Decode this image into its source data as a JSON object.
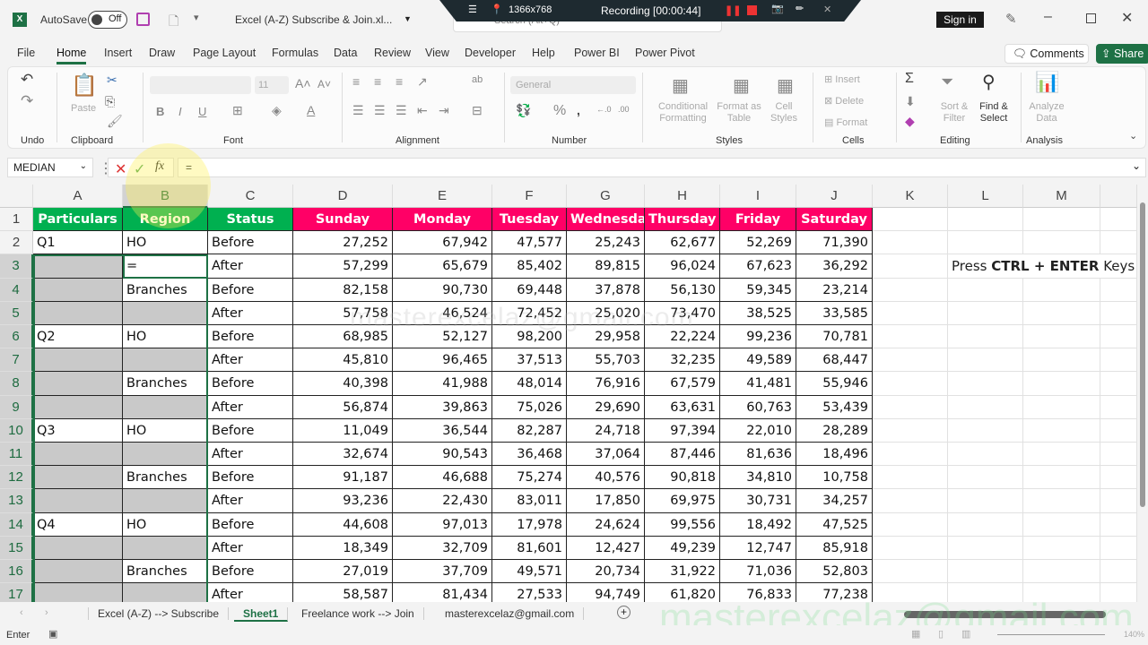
{
  "titlebar": {
    "autosave_label": "AutoSave",
    "autosave_state": "Off",
    "file_name": "Excel (A-Z) Subscribe & Join.xl...",
    "search_placeholder": "Search (Alt+Q)",
    "sign_in": "Sign in"
  },
  "recorder": {
    "resolution": "1366x768",
    "status": "Recording [00:00:44]"
  },
  "menu": {
    "tabs": [
      "File",
      "Home",
      "Insert",
      "Draw",
      "Page Layout",
      "Formulas",
      "Data",
      "Review",
      "View",
      "Developer",
      "Help",
      "Power BI",
      "Power Pivot"
    ],
    "active": "Home",
    "comments": "Comments",
    "share": "Share"
  },
  "ribbon": {
    "groups": [
      "Undo",
      "Clipboard",
      "Font",
      "Alignment",
      "Number",
      "Styles",
      "Cells",
      "Editing",
      "Analysis"
    ],
    "paste": "Paste",
    "font_size": "11",
    "number_format": "General",
    "conditional_formatting": "Conditional Formatting",
    "format_as_table": "Format as Table",
    "cell_styles": "Cell Styles",
    "insert": "Insert",
    "delete": "Delete",
    "format": "Format",
    "sort_filter": "Sort & Filter",
    "find_select": "Find & Select",
    "analyze_data": "Analyze Data"
  },
  "formula_bar": {
    "name_box": "MEDIAN",
    "formula": "="
  },
  "columns": [
    "A",
    "B",
    "C",
    "D",
    "E",
    "F",
    "G",
    "H",
    "I",
    "J",
    "K",
    "L",
    "M"
  ],
  "selected_column": "B",
  "headers": [
    "Particulars",
    "Region",
    "Status",
    "Sunday",
    "Monday",
    "Tuesday",
    "Wednesday",
    "Thursday",
    "Friday",
    "Saturday"
  ],
  "colors": {
    "header_green": "#00b050",
    "header_pink": "#ff0066",
    "selection_gray": "#c9c9c9",
    "accent": "#1e7145"
  },
  "rows": [
    {
      "n": 2,
      "a": "Q1",
      "b": "HO",
      "c": "Before",
      "v": [
        "27,252",
        "67,942",
        "47,577",
        "25,243",
        "62,677",
        "52,269",
        "71,390"
      ]
    },
    {
      "n": 3,
      "a": "",
      "b": "=",
      "c": "After",
      "v": [
        "57,299",
        "65,679",
        "85,402",
        "89,815",
        "96,024",
        "67,623",
        "36,292"
      ]
    },
    {
      "n": 4,
      "a": "",
      "b": "Branches",
      "c": "Before",
      "v": [
        "82,158",
        "90,730",
        "69,448",
        "37,878",
        "56,130",
        "59,345",
        "23,214"
      ]
    },
    {
      "n": 5,
      "a": "",
      "b": "",
      "c": "After",
      "v": [
        "57,758",
        "46,524",
        "72,452",
        "25,020",
        "73,470",
        "38,525",
        "33,585"
      ]
    },
    {
      "n": 6,
      "a": "Q2",
      "b": "HO",
      "c": "Before",
      "v": [
        "68,985",
        "52,127",
        "98,200",
        "29,958",
        "22,224",
        "99,236",
        "70,781"
      ]
    },
    {
      "n": 7,
      "a": "",
      "b": "",
      "c": "After",
      "v": [
        "45,810",
        "96,465",
        "37,513",
        "55,703",
        "32,235",
        "49,589",
        "68,447"
      ]
    },
    {
      "n": 8,
      "a": "",
      "b": "Branches",
      "c": "Before",
      "v": [
        "40,398",
        "41,988",
        "48,014",
        "76,916",
        "67,579",
        "41,481",
        "55,946"
      ]
    },
    {
      "n": 9,
      "a": "",
      "b": "",
      "c": "After",
      "v": [
        "56,874",
        "39,863",
        "75,026",
        "29,690",
        "63,631",
        "60,763",
        "53,439"
      ]
    },
    {
      "n": 10,
      "a": "Q3",
      "b": "HO",
      "c": "Before",
      "v": [
        "11,049",
        "36,544",
        "82,287",
        "24,718",
        "97,394",
        "22,010",
        "28,289"
      ]
    },
    {
      "n": 11,
      "a": "",
      "b": "",
      "c": "After",
      "v": [
        "32,674",
        "90,543",
        "36,468",
        "37,064",
        "87,446",
        "81,636",
        "18,496"
      ]
    },
    {
      "n": 12,
      "a": "",
      "b": "Branches",
      "c": "Before",
      "v": [
        "91,187",
        "46,688",
        "75,274",
        "40,576",
        "90,818",
        "34,810",
        "10,758"
      ]
    },
    {
      "n": 13,
      "a": "",
      "b": "",
      "c": "After",
      "v": [
        "93,236",
        "22,430",
        "83,011",
        "17,850",
        "69,975",
        "30,731",
        "34,257"
      ]
    },
    {
      "n": 14,
      "a": "Q4",
      "b": "HO",
      "c": "Before",
      "v": [
        "44,608",
        "97,013",
        "17,978",
        "24,624",
        "99,556",
        "18,492",
        "47,525"
      ]
    },
    {
      "n": 15,
      "a": "",
      "b": "",
      "c": "After",
      "v": [
        "18,349",
        "32,709",
        "81,601",
        "12,427",
        "49,239",
        "12,747",
        "85,918"
      ]
    },
    {
      "n": 16,
      "a": "",
      "b": "Branches",
      "c": "Before",
      "v": [
        "27,019",
        "37,709",
        "49,571",
        "20,734",
        "31,922",
        "71,036",
        "52,803"
      ]
    },
    {
      "n": 17,
      "a": "",
      "b": "",
      "c": "After",
      "v": [
        "58,587",
        "81,434",
        "27,533",
        "94,749",
        "61,820",
        "76,833",
        "77,238"
      ]
    }
  ],
  "note": {
    "pre": "Press ",
    "bold": "CTRL + ENTER",
    "post": " Keys"
  },
  "watermark": "masterexcelaz@gmail.com",
  "sheets": [
    "Excel (A-Z) --> Subscribe",
    "Sheet1",
    "Freelance work --> Join",
    "masterexcelaz@gmail.com"
  ],
  "active_sheet": "Sheet1",
  "status": {
    "mode": "Enter",
    "zoom": "140%"
  }
}
